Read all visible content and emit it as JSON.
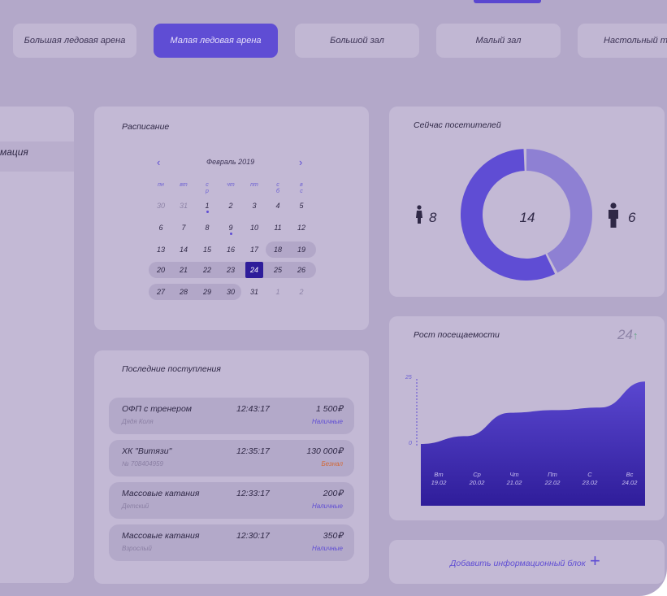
{
  "tabs": [
    {
      "label": "Большая ледовая арена",
      "active": false
    },
    {
      "label": "Малая ледовая арена",
      "active": true
    },
    {
      "label": "Большой зал",
      "active": false
    },
    {
      "label": "Малый зал",
      "active": false
    },
    {
      "label": "Настольный тенн",
      "active": false
    }
  ],
  "sidebar": {
    "selected_label": "мация"
  },
  "schedule": {
    "title": "Расписание",
    "month": "Февраль 2019",
    "weekdays": [
      "пн",
      "вт",
      "с\nр",
      "чт",
      "пт",
      "с\nб",
      "в\nс"
    ],
    "weeks": [
      [
        "30",
        "31",
        "1",
        "2",
        "3",
        "4",
        "5"
      ],
      [
        "6",
        "7",
        "8",
        "9",
        "10",
        "11",
        "12"
      ],
      [
        "13",
        "14",
        "15",
        "16",
        "17",
        "18",
        "19"
      ],
      [
        "20",
        "21",
        "22",
        "23",
        "24",
        "25",
        "26"
      ],
      [
        "27",
        "28",
        "29",
        "30",
        "31",
        "1",
        "2"
      ]
    ],
    "selected_day": "24"
  },
  "payments": {
    "title": "Последние поступления",
    "items": [
      {
        "title": "ОФП с тренером",
        "sub": "Дядя Коля",
        "time": "12:43:17",
        "amount": "1 500₽",
        "method": "Наличные"
      },
      {
        "title": "ХК \"Витязи\"",
        "sub": "№ 708404959",
        "time": "12:35:17",
        "amount": "130 000₽",
        "method": "Безнал"
      },
      {
        "title": "Массовые катания",
        "sub": "Детский",
        "time": "12:33:17",
        "amount": "200₽",
        "method": "Наличные"
      },
      {
        "title": "Массовые катания",
        "sub": "Взрослый",
        "time": "12:30:17",
        "amount": "350₽",
        "method": "Наличные"
      }
    ]
  },
  "visitors": {
    "title": "Сейчас посетителей",
    "total": "14",
    "women": "8",
    "men": "6",
    "colors": {
      "women": "#5f4dd4",
      "men": "#8e80d3"
    }
  },
  "growth": {
    "title": "Рост посещаемости",
    "value": "24",
    "arrow": "↑"
  },
  "chart_data": {
    "type": "area",
    "title": "Рост посещаемости",
    "categories": [
      "Вт\n19.02",
      "Ср\n20.02",
      "Чт\n21.02",
      "Пт\n22.02",
      "С\n23.02",
      "Вс\n24.02"
    ],
    "values": [
      0,
      3,
      12,
      13,
      14,
      24
    ],
    "yticks": [
      "25",
      "0"
    ],
    "ylim": [
      0,
      25
    ]
  },
  "add_block": {
    "label": "Добавить информационный блок",
    "icon": "plus-icon"
  }
}
